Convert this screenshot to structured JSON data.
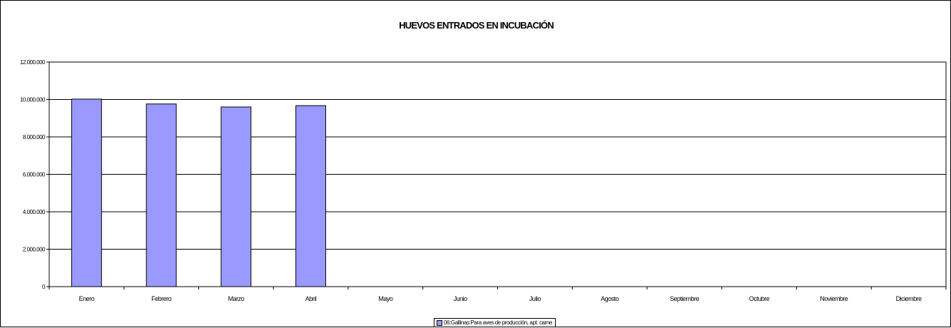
{
  "chart_data": {
    "type": "bar",
    "title": "HUEVOS ENTRADOS EN INCUBACIÓN",
    "xlabel": "",
    "ylabel": "",
    "categories": [
      "Enero",
      "Febrero",
      "Marzo",
      "Abril",
      "Mayo",
      "Junio",
      "Julio",
      "Agosto",
      "Septiembre",
      "Octubre",
      "Noviembre",
      "Diciembre"
    ],
    "series": [
      {
        "name": "06:Gallinas:Para aves de producción, apt. carne",
        "values": [
          10020000,
          9760000,
          9600000,
          9670000,
          null,
          null,
          null,
          null,
          null,
          null,
          null,
          null
        ],
        "color": "#9999ff"
      }
    ],
    "ylim": [
      0,
      12000000
    ],
    "yticks": [
      "0",
      "2.000.000",
      "4.000.000",
      "6.000.000",
      "8.000.000",
      "10.000.000",
      "12.000.000"
    ],
    "grid": true,
    "legend_position": "bottom"
  }
}
